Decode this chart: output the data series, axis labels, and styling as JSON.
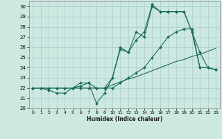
{
  "title": "",
  "xlabel": "Humidex (Indice chaleur)",
  "ylabel": "",
  "xlim": [
    -0.5,
    23.5
  ],
  "ylim": [
    20,
    30.5
  ],
  "yticks": [
    20,
    21,
    22,
    23,
    24,
    25,
    26,
    27,
    28,
    29,
    30
  ],
  "xticks": [
    0,
    1,
    2,
    3,
    4,
    5,
    6,
    7,
    8,
    9,
    10,
    11,
    12,
    13,
    14,
    15,
    16,
    17,
    18,
    19,
    20,
    21,
    22,
    23
  ],
  "background_color": "#cce8e0",
  "grid_color": "#aacccc",
  "line_color": "#1a6b5a",
  "lines": [
    {
      "x": [
        0,
        1,
        2,
        3,
        4,
        5,
        6,
        7,
        8,
        9,
        10,
        11,
        12,
        13,
        14,
        15,
        16,
        17,
        18,
        19,
        20,
        21,
        22,
        23
      ],
      "y": [
        22,
        22,
        22,
        22,
        22,
        22,
        22,
        22,
        22,
        22,
        22.3,
        22.6,
        22.9,
        23.1,
        23.4,
        23.7,
        24.0,
        24.3,
        24.6,
        24.8,
        25.1,
        25.3,
        25.6,
        25.9
      ],
      "marker": null,
      "lw": 0.8
    },
    {
      "x": [
        0,
        1,
        2,
        3,
        4,
        5,
        6,
        7,
        8,
        9,
        10,
        11,
        12,
        13,
        14,
        15,
        16,
        17,
        18,
        19,
        20,
        21,
        22,
        23
      ],
      "y": [
        22,
        22,
        21.8,
        21.5,
        21.5,
        22,
        22.5,
        22.5,
        20.5,
        21.5,
        23,
        25.8,
        25.5,
        26.7,
        27.5,
        30.2,
        29.5,
        29.5,
        29.5,
        29.5,
        27.5,
        25.5,
        24,
        23.8
      ],
      "marker": "D",
      "lw": 0.8
    },
    {
      "x": [
        0,
        1,
        2,
        3,
        4,
        5,
        6,
        7,
        8,
        9,
        10,
        11,
        12,
        13,
        14,
        15,
        16,
        17,
        18,
        19,
        20,
        21,
        22,
        23
      ],
      "y": [
        22,
        22,
        22,
        22,
        22,
        22,
        22.2,
        22.5,
        22,
        22,
        23,
        26,
        25.5,
        27.5,
        27,
        30,
        29.5,
        29.5,
        29.5,
        29.5,
        27.5,
        24,
        24,
        23.8
      ],
      "marker": "D",
      "lw": 0.8
    },
    {
      "x": [
        0,
        1,
        2,
        3,
        4,
        5,
        6,
        7,
        8,
        9,
        10,
        11,
        12,
        13,
        14,
        15,
        16,
        17,
        18,
        19,
        20,
        21,
        22,
        23
      ],
      "y": [
        22,
        22,
        22,
        22,
        22,
        22,
        22,
        22,
        22,
        22,
        22,
        22.5,
        23,
        23.5,
        24,
        25,
        26,
        27,
        27.5,
        27.8,
        27.8,
        24,
        24,
        23.8
      ],
      "marker": "D",
      "lw": 0.8
    }
  ]
}
